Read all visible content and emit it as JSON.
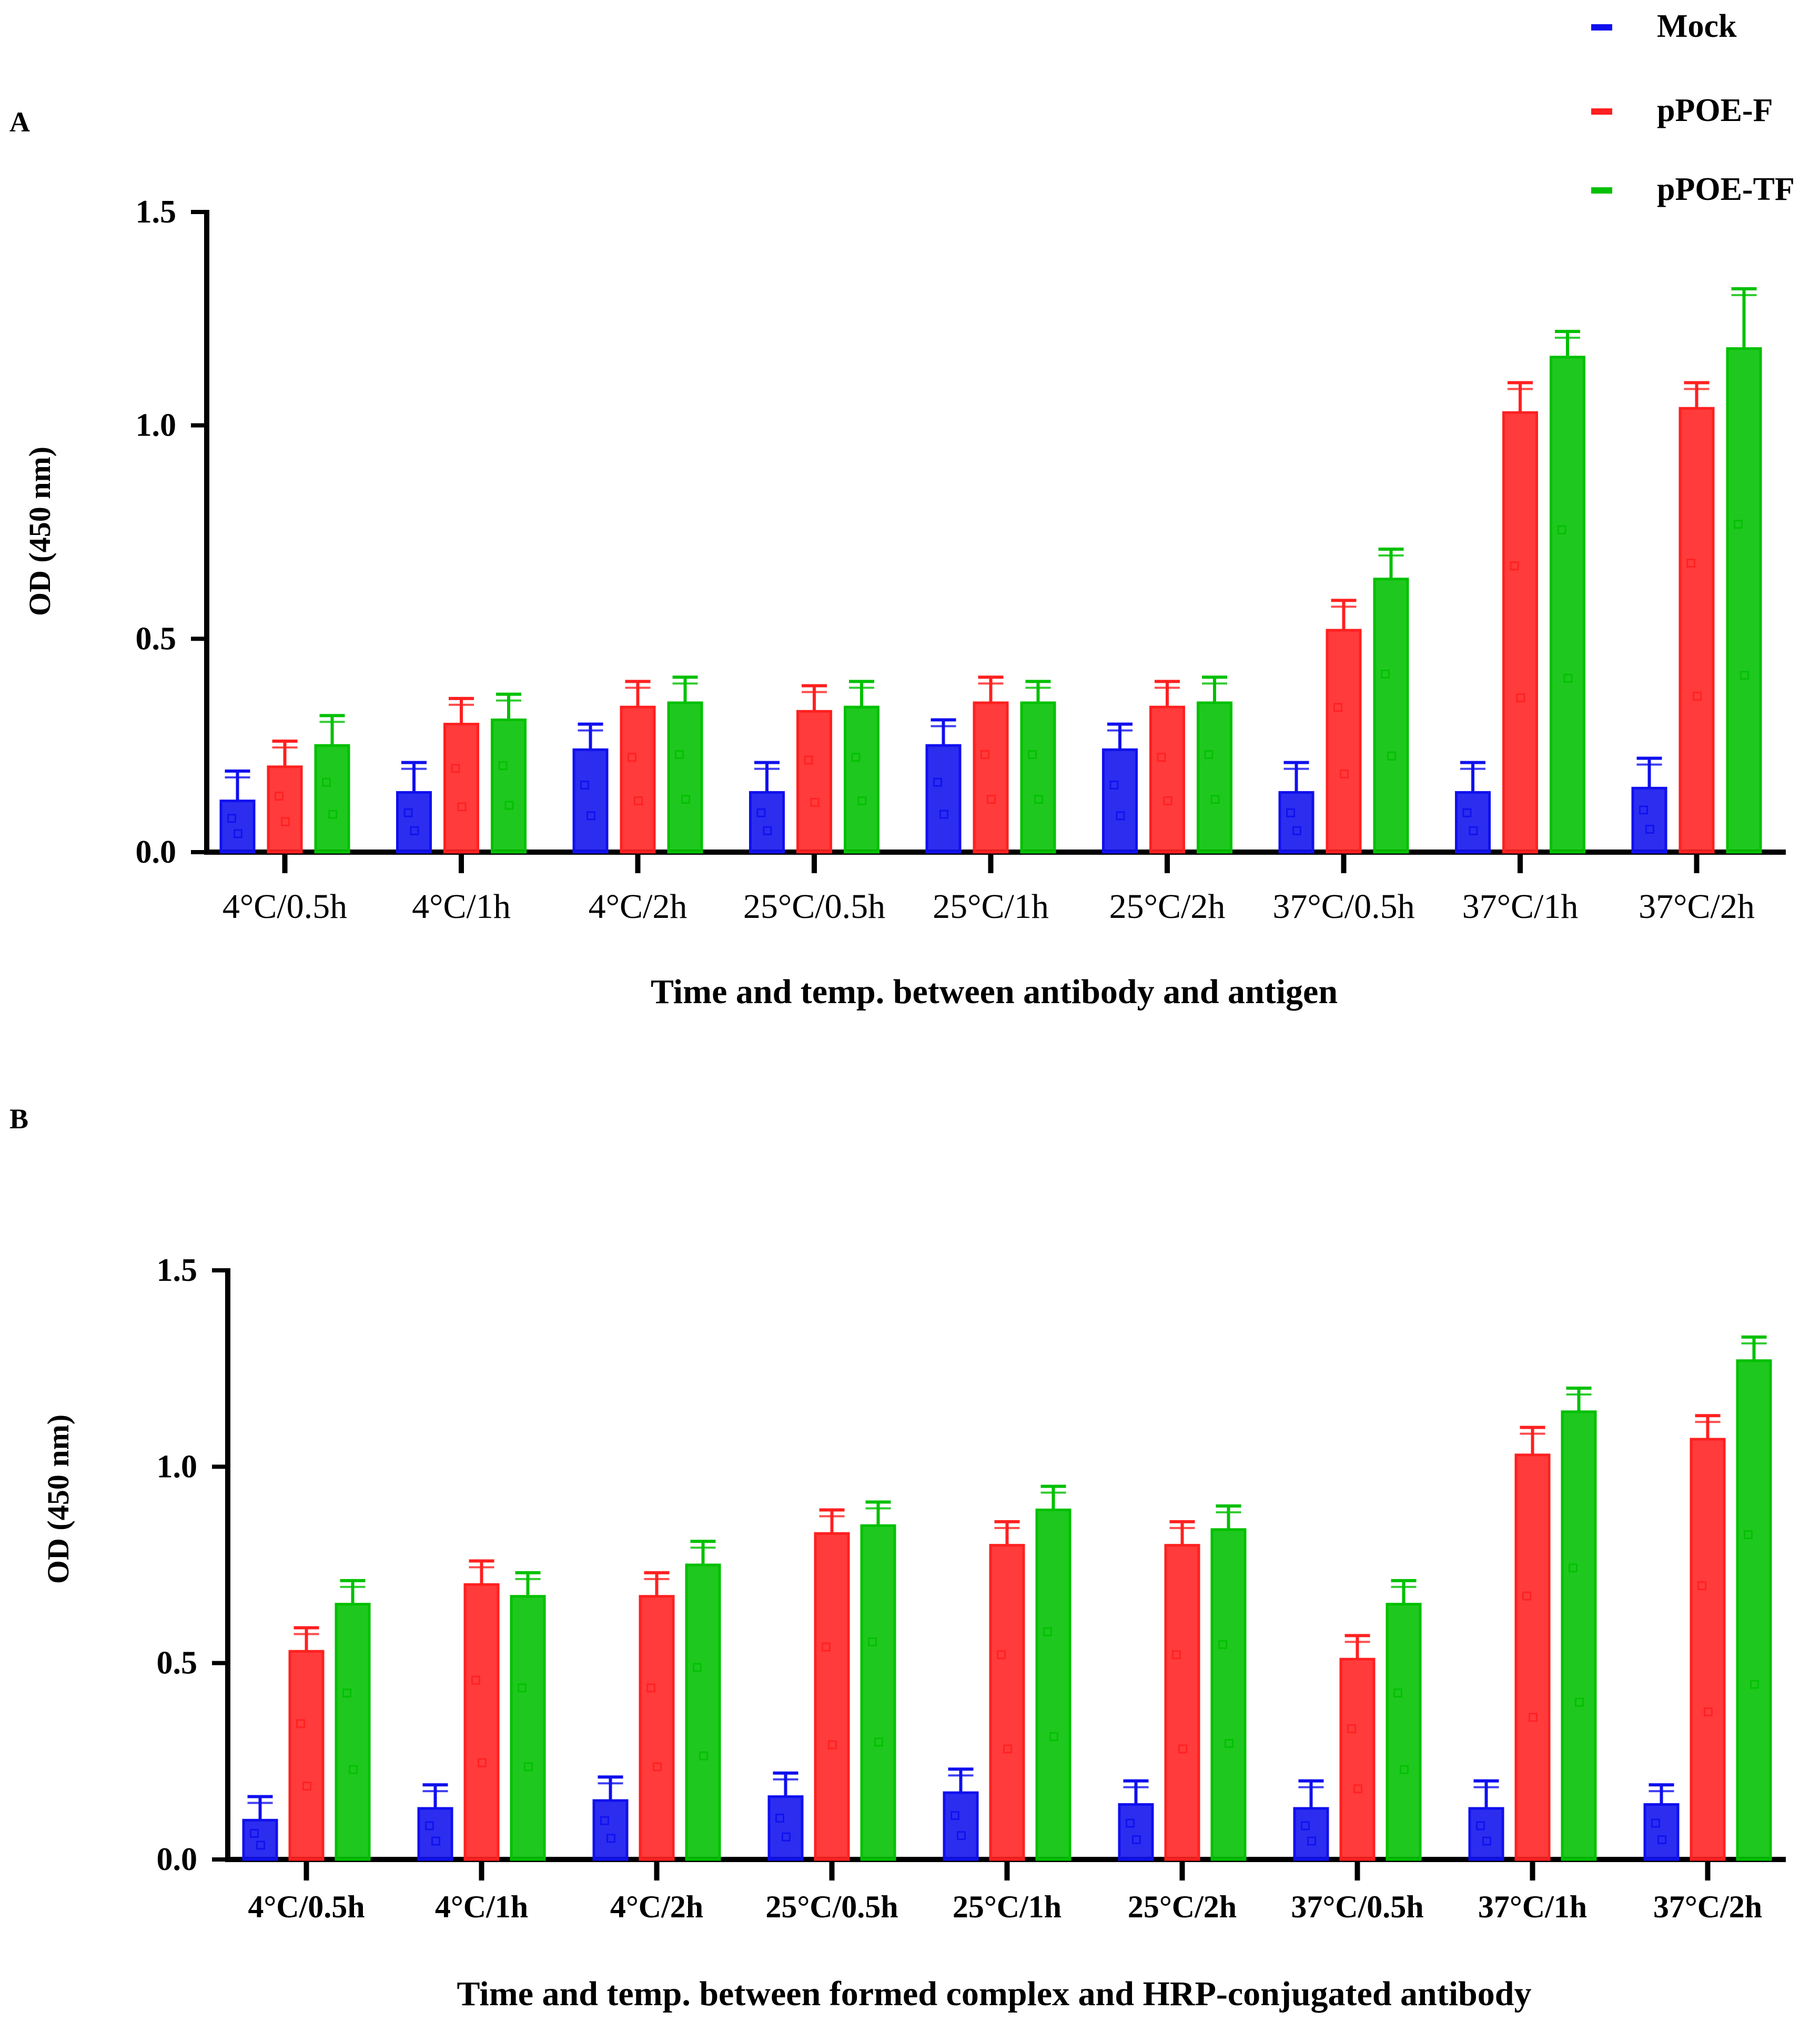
{
  "legend": [
    {
      "name": "Mock",
      "color": "#1010ee"
    },
    {
      "name": "pPOE-F",
      "color": "#ff2020"
    },
    {
      "name": "pPOE-TF",
      "color": "#00c000"
    }
  ],
  "chart_data": [
    {
      "panel": "A",
      "type": "bar",
      "title": "",
      "xlabel": "Time and temp. between antibody and antigen",
      "ylabel": "OD (450 nm)",
      "ylim": [
        0,
        1.5
      ],
      "yticks": [
        "0.0",
        "0.5",
        "1.0",
        "1.5"
      ],
      "categories": [
        "4°C/0.5h",
        "4°C/1h",
        "4°C/2h",
        "25°C/0.5h",
        "25°C/1h",
        "25°C/2h",
        "37°C/0.5h",
        "37°C/1h",
        "37°C/2h"
      ],
      "series": [
        {
          "name": "Mock",
          "values": [
            0.12,
            0.14,
            0.24,
            0.14,
            0.25,
            0.24,
            0.14,
            0.14,
            0.15
          ],
          "errors": [
            0.07,
            0.07,
            0.06,
            0.07,
            0.06,
            0.06,
            0.07,
            0.07,
            0.07
          ]
        },
        {
          "name": "pPOE-F",
          "values": [
            0.2,
            0.3,
            0.34,
            0.33,
            0.35,
            0.34,
            0.52,
            1.03,
            1.04
          ],
          "errors": [
            0.06,
            0.06,
            0.06,
            0.06,
            0.06,
            0.06,
            0.07,
            0.07,
            0.06
          ]
        },
        {
          "name": "pPOE-TF",
          "values": [
            0.25,
            0.31,
            0.35,
            0.34,
            0.35,
            0.35,
            0.64,
            1.16,
            1.18
          ],
          "errors": [
            0.07,
            0.06,
            0.06,
            0.06,
            0.05,
            0.06,
            0.07,
            0.06,
            0.14
          ]
        }
      ]
    },
    {
      "panel": "B",
      "type": "bar",
      "title": "",
      "xlabel": "Time and temp. between formed complex and HRP-conjugated antibody",
      "ylabel": "OD (450 nm)",
      "ylim": [
        0,
        1.5
      ],
      "yticks": [
        "0.0",
        "0.5",
        "1.0",
        "1.5"
      ],
      "categories": [
        "4°C/0.5h",
        "4°C/1h",
        "4°C/2h",
        "25°C/0.5h",
        "25°C/1h",
        "25°C/2h",
        "37°C/0.5h",
        "37°C/1h",
        "37°C/2h"
      ],
      "series": [
        {
          "name": "Mock",
          "values": [
            0.1,
            0.13,
            0.15,
            0.16,
            0.17,
            0.14,
            0.13,
            0.13,
            0.14
          ],
          "errors": [
            0.06,
            0.06,
            0.06,
            0.06,
            0.06,
            0.06,
            0.07,
            0.07,
            0.05
          ]
        },
        {
          "name": "pPOE-F",
          "values": [
            0.53,
            0.7,
            0.67,
            0.83,
            0.8,
            0.8,
            0.51,
            1.03,
            1.07
          ],
          "errors": [
            0.06,
            0.06,
            0.06,
            0.06,
            0.06,
            0.06,
            0.06,
            0.07,
            0.06
          ]
        },
        {
          "name": "pPOE-TF",
          "values": [
            0.65,
            0.67,
            0.75,
            0.85,
            0.89,
            0.84,
            0.65,
            1.14,
            1.27
          ],
          "errors": [
            0.06,
            0.06,
            0.06,
            0.06,
            0.06,
            0.06,
            0.06,
            0.06,
            0.06
          ]
        }
      ]
    }
  ]
}
